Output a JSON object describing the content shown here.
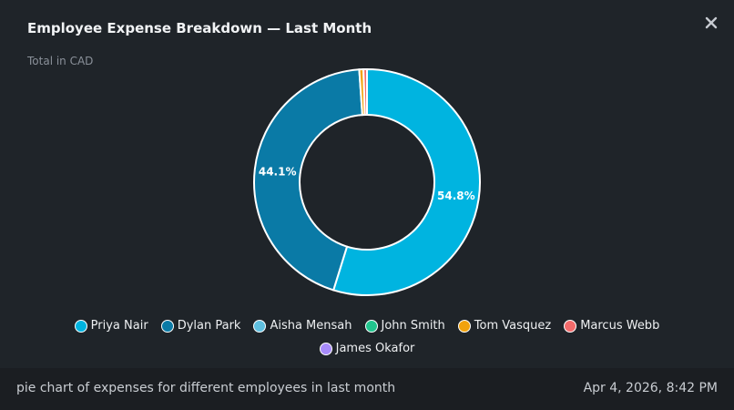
{
  "card": {
    "title": "Employee Expense Breakdown — Last Month",
    "subtitle": "Total in CAD",
    "close_icon": "close-icon"
  },
  "chart_data": {
    "type": "pie",
    "donut": true,
    "title": "Employee Expense Breakdown — Last Month",
    "subtitle": "Total in CAD",
    "legend_position": "bottom",
    "slices": [
      {
        "name": "Priya Nair",
        "percent": 54.8,
        "label": "54.8%",
        "color": "#00b4e0"
      },
      {
        "name": "Dylan Park",
        "percent": 44.1,
        "label": "44.1%",
        "color": "#0a7aa6"
      },
      {
        "name": "Aisha Mensah",
        "percent": 0.0,
        "label": "",
        "color": "#5fc0e0"
      },
      {
        "name": "John Smith",
        "percent": 0.0,
        "label": "",
        "color": "#22c58e"
      },
      {
        "name": "Tom Vasquez",
        "percent": 0.6,
        "label": "",
        "color": "#f2a20c"
      },
      {
        "name": "Marcus Webb",
        "percent": 0.5,
        "label": "",
        "color": "#f26b6b"
      },
      {
        "name": "James Okafor",
        "percent": 0.0,
        "label": "",
        "color": "#a78bfa"
      }
    ]
  },
  "footer": {
    "caption": "pie chart of expenses for different employees in last month",
    "timestamp": "Apr 4, 2026, 8:42 PM"
  }
}
